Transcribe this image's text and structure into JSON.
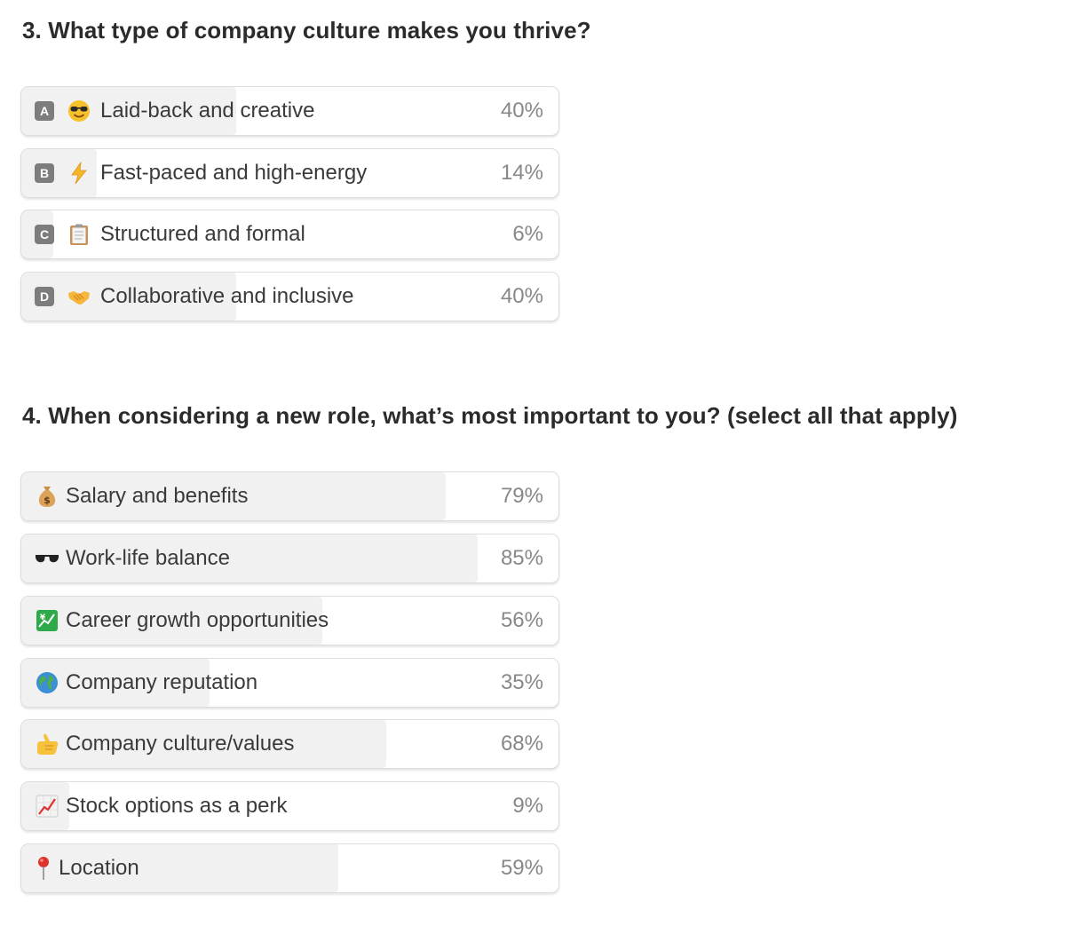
{
  "q3": {
    "title": "3. What type of company culture makes you thrive?",
    "options": [
      {
        "letter": "A",
        "icon": "sunglasses-face-icon",
        "label": "Laid-back and creative",
        "percent": "40%",
        "fill": 0.4
      },
      {
        "letter": "B",
        "icon": "lightning-icon",
        "label": "Fast-paced and high-energy",
        "percent": "14%",
        "fill": 0.14
      },
      {
        "letter": "C",
        "icon": "clipboard-icon",
        "label": "Structured and formal",
        "percent": "6%",
        "fill": 0.06
      },
      {
        "letter": "D",
        "icon": "handshake-icon",
        "label": "Collaborative and inclusive",
        "percent": "40%",
        "fill": 0.4
      }
    ]
  },
  "q4": {
    "title": "4. When considering a new role, what’s most important to you? (select all that apply)",
    "options": [
      {
        "icon": "money-bag-icon",
        "label": "Salary and benefits",
        "percent": "79%",
        "fill": 0.79
      },
      {
        "icon": "sunglasses-icon",
        "label": "Work-life balance",
        "percent": "85%",
        "fill": 0.85
      },
      {
        "icon": "chart-exchange-icon",
        "label": "Career growth opportunities",
        "percent": "56%",
        "fill": 0.56
      },
      {
        "icon": "globe-icon",
        "label": "Company reputation",
        "percent": "35%",
        "fill": 0.35
      },
      {
        "icon": "call-me-hand-icon",
        "label": "Company culture/values",
        "percent": "68%",
        "fill": 0.68
      },
      {
        "icon": "chart-increasing-icon",
        "label": "Stock options as a perk",
        "percent": "9%",
        "fill": 0.09
      },
      {
        "icon": "round-pin-icon",
        "label": "Location",
        "percent": "59%",
        "fill": 0.59
      }
    ]
  }
}
